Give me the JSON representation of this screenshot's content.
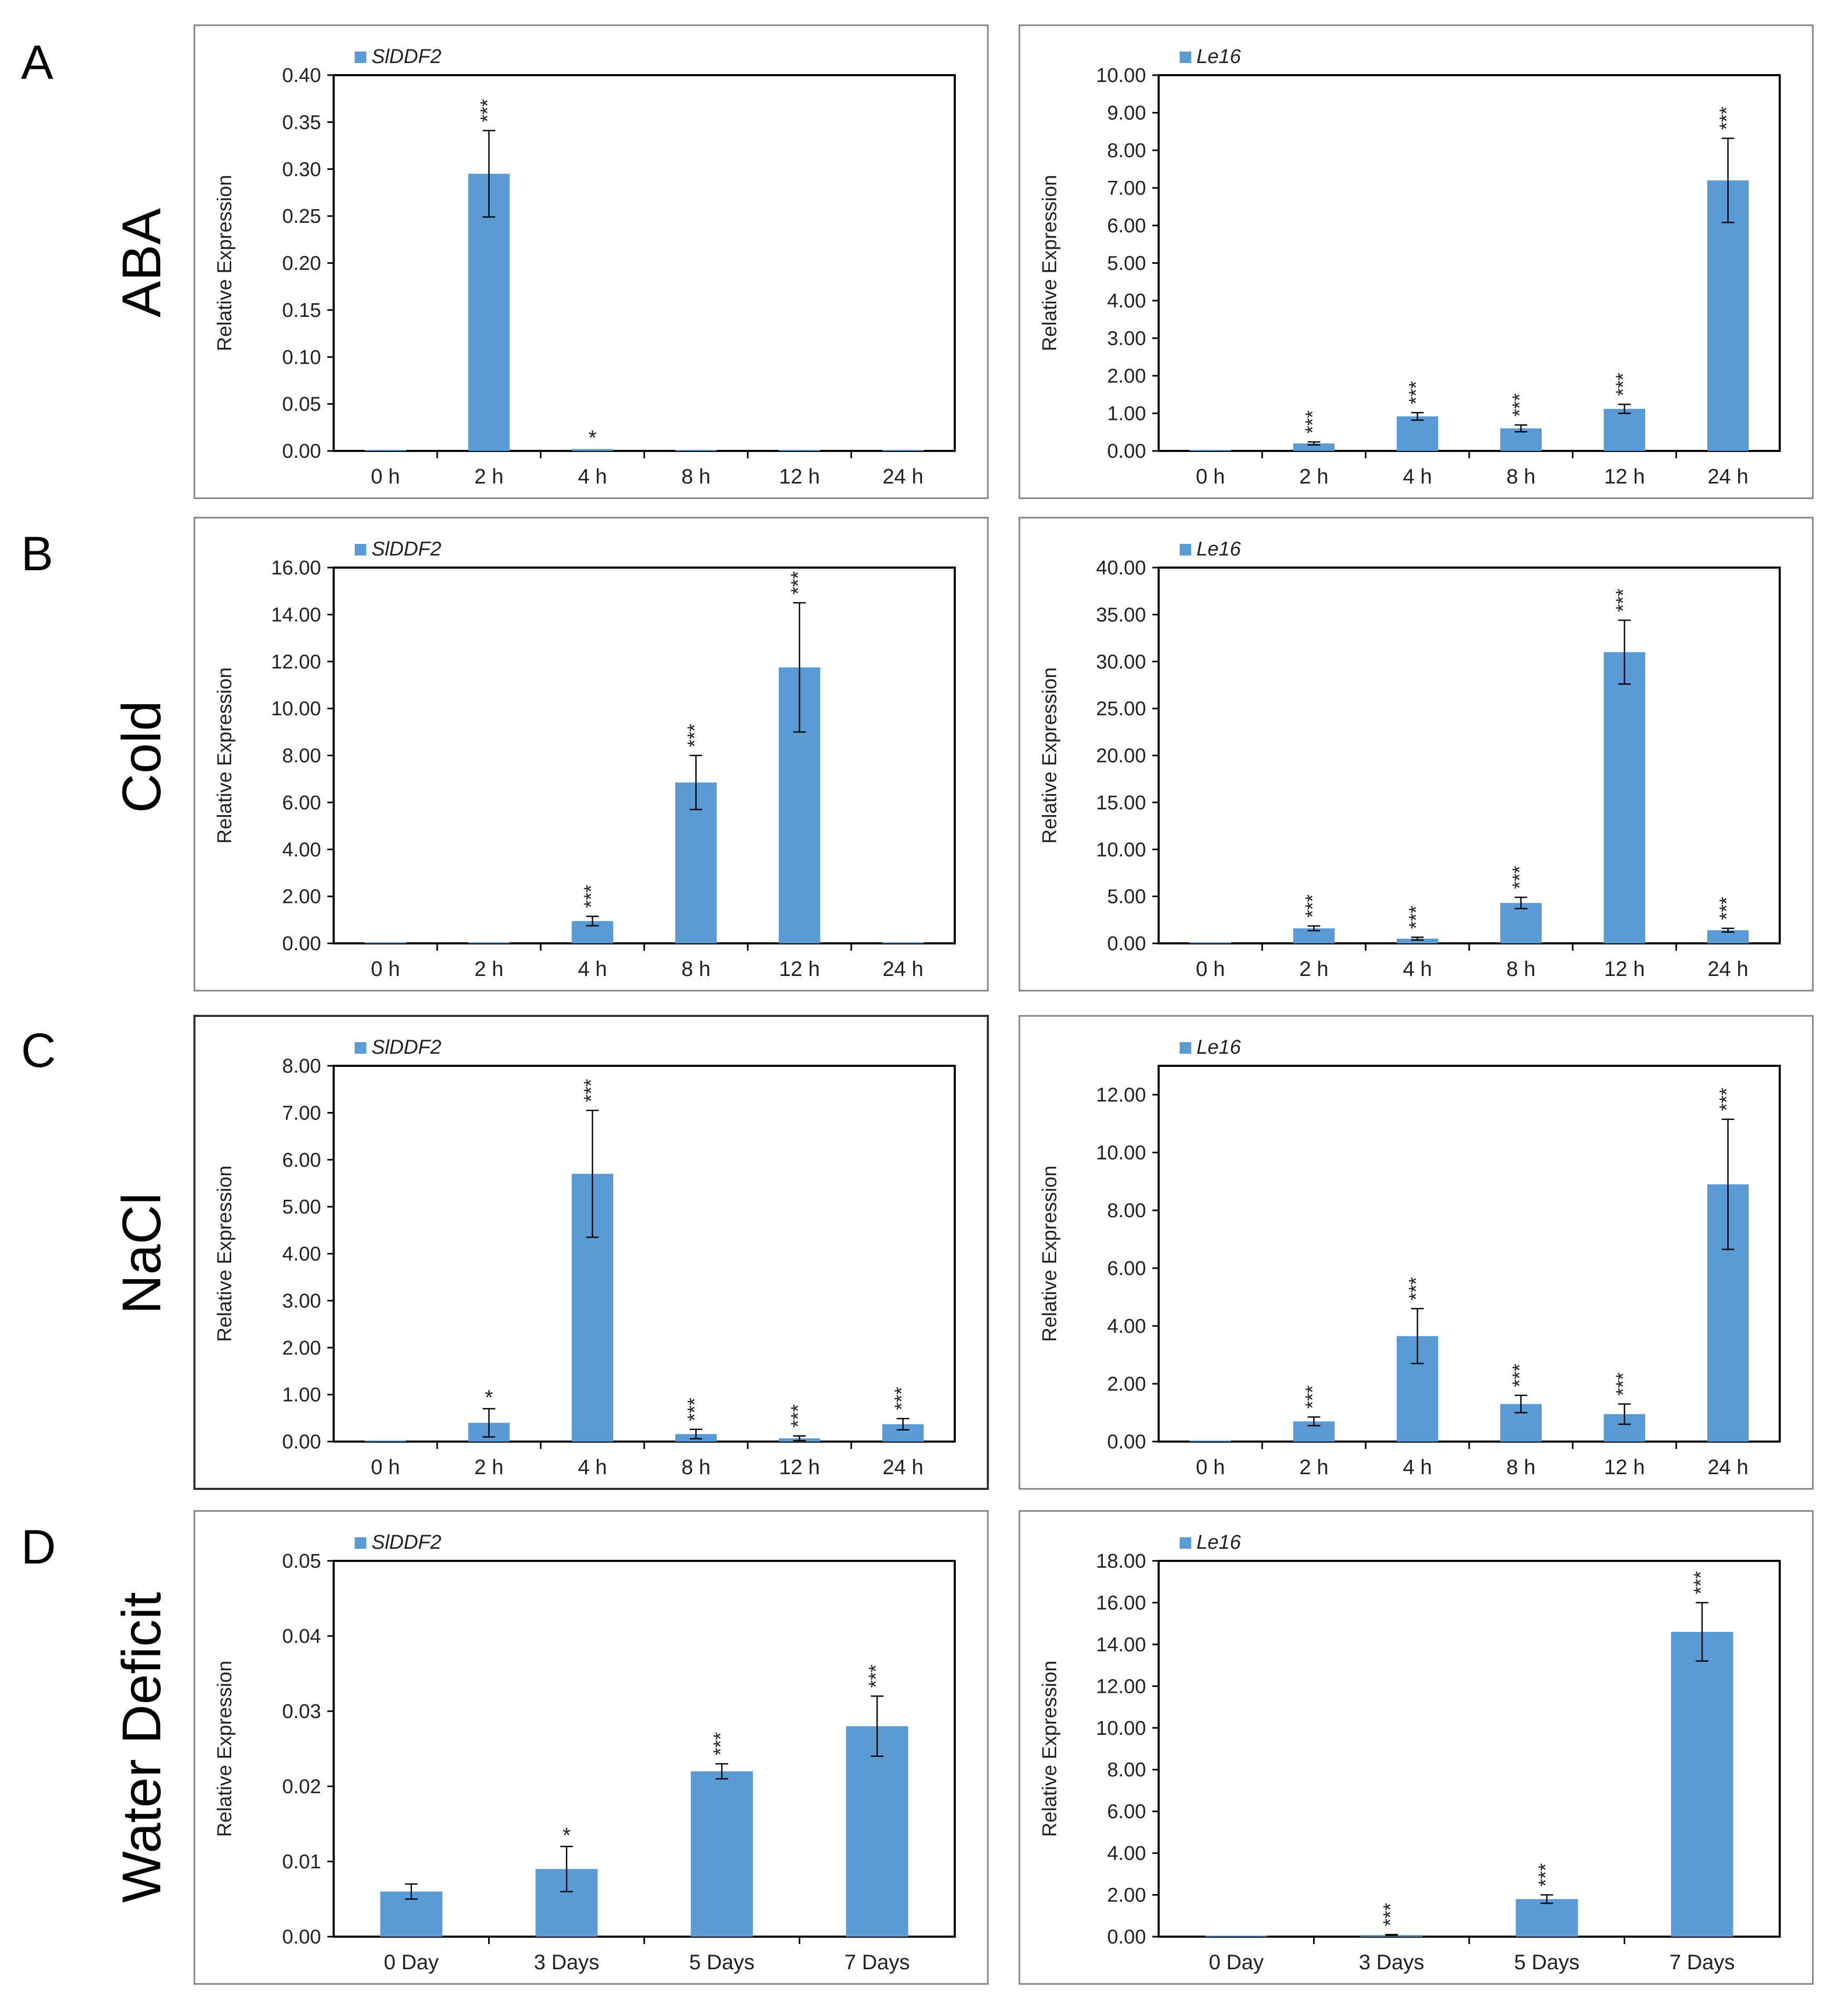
{
  "figure": {
    "panels": [
      {
        "letter": "A",
        "treatment": "ABA"
      },
      {
        "letter": "B",
        "treatment": "Cold"
      },
      {
        "letter": "C",
        "treatment": "NaCl"
      },
      {
        "letter": "D",
        "treatment": "Water Deficit"
      }
    ]
  },
  "colors": {
    "bar": "#5b9bd5",
    "frame": "#808080",
    "plot_border": "#000000"
  },
  "chart_data": [
    {
      "type": "bar",
      "row": 0,
      "col": 0,
      "legend": "SlDDF2",
      "ylabel": "Relative Expression",
      "categories": [
        "0 h",
        "2 h",
        "4 h",
        "8 h",
        "12 h",
        "24 h"
      ],
      "values": [
        0.001,
        0.295,
        0.002,
        0.001,
        0.001,
        0.001
      ],
      "errors": [
        0.0,
        0.046,
        0.0,
        0.0,
        0.0,
        0.0
      ],
      "significance": [
        "",
        "***",
        "*",
        "",
        "",
        ""
      ],
      "ylim": [
        0,
        0.4
      ],
      "yticks": [
        "0.00",
        "0.05",
        "0.10",
        "0.15",
        "0.20",
        "0.25",
        "0.30",
        "0.35",
        "0.40"
      ]
    },
    {
      "type": "bar",
      "row": 0,
      "col": 1,
      "legend": "Le16",
      "ylabel": "Relative Expression",
      "categories": [
        "0 h",
        "2 h",
        "4 h",
        "8 h",
        "12 h",
        "24 h"
      ],
      "values": [
        0.02,
        0.2,
        0.92,
        0.6,
        1.12,
        7.2
      ],
      "errors": [
        0.0,
        0.04,
        0.1,
        0.09,
        0.12,
        1.12
      ],
      "significance": [
        "",
        "***",
        "***",
        "***",
        "***",
        "***"
      ],
      "ylim": [
        0,
        10
      ],
      "yticks": [
        "0.00",
        "1.00",
        "2.00",
        "3.00",
        "4.00",
        "5.00",
        "6.00",
        "7.00",
        "8.00",
        "9.00",
        "10.00"
      ]
    },
    {
      "type": "bar",
      "row": 1,
      "col": 0,
      "legend": "SlDDF2",
      "ylabel": "Relative Expression",
      "categories": [
        "0 h",
        "2 h",
        "4 h",
        "8 h",
        "12 h",
        "24 h"
      ],
      "values": [
        0.02,
        0.02,
        0.95,
        6.85,
        11.75,
        0.02
      ],
      "errors": [
        0.0,
        0.0,
        0.2,
        1.15,
        2.75,
        0.0
      ],
      "significance": [
        "",
        "",
        "***",
        "***",
        "***",
        ""
      ],
      "ylim": [
        0,
        16
      ],
      "yticks": [
        "0.00",
        "2.00",
        "4.00",
        "6.00",
        "8.00",
        "10.00",
        "12.00",
        "14.00",
        "16.00"
      ]
    },
    {
      "type": "bar",
      "row": 1,
      "col": 1,
      "legend": "Le16",
      "ylabel": "Relative Expression",
      "categories": [
        "0 h",
        "2 h",
        "4 h",
        "8 h",
        "12 h",
        "24 h"
      ],
      "values": [
        0.05,
        1.6,
        0.5,
        4.3,
        31.0,
        1.4
      ],
      "errors": [
        0.0,
        0.25,
        0.15,
        0.6,
        3.4,
        0.2
      ],
      "significance": [
        "",
        "***",
        "***",
        "***",
        "***",
        "***"
      ],
      "ylim": [
        0,
        40
      ],
      "yticks": [
        "0.00",
        "5.00",
        "10.00",
        "15.00",
        "20.00",
        "25.00",
        "30.00",
        "35.00",
        "40.00"
      ]
    },
    {
      "type": "bar",
      "row": 2,
      "col": 0,
      "legend": "SlDDF2",
      "ylabel": "Relative Expression",
      "categories": [
        "0 h",
        "2 h",
        "4 h",
        "8 h",
        "12 h",
        "24 h"
      ],
      "values": [
        0.01,
        0.4,
        5.7,
        0.16,
        0.07,
        0.37
      ],
      "errors": [
        0.0,
        0.3,
        1.35,
        0.1,
        0.05,
        0.12
      ],
      "significance": [
        "",
        "*",
        "***",
        "***",
        "***",
        "***"
      ],
      "ylim": [
        0,
        8
      ],
      "yticks": [
        "0.00",
        "1.00",
        "2.00",
        "3.00",
        "4.00",
        "5.00",
        "6.00",
        "7.00",
        "8.00"
      ]
    },
    {
      "type": "bar",
      "row": 2,
      "col": 1,
      "legend": "Le16",
      "ylabel": "Relative Expression",
      "categories": [
        "0 h",
        "2 h",
        "4 h",
        "8 h",
        "12 h",
        "24 h"
      ],
      "values": [
        0.02,
        0.7,
        3.65,
        1.3,
        0.95,
        8.9
      ],
      "errors": [
        0.0,
        0.15,
        0.95,
        0.3,
        0.35,
        2.25
      ],
      "significance": [
        "",
        "***",
        "***",
        "***",
        "***",
        "***"
      ],
      "ylim": [
        0,
        13
      ],
      "yticks": [
        "0.00",
        "2.00",
        "4.00",
        "6.00",
        "8.00",
        "10.00",
        "12.00"
      ]
    },
    {
      "type": "bar",
      "row": 3,
      "col": 0,
      "legend": "SlDDF2",
      "ylabel": "Relative Expression",
      "categories": [
        "0 Day",
        "3 Days",
        "5 Days",
        "7 Days"
      ],
      "values": [
        0.006,
        0.009,
        0.022,
        0.028
      ],
      "errors": [
        0.001,
        0.003,
        0.001,
        0.004
      ],
      "significance": [
        "",
        "*",
        "***",
        "***"
      ],
      "ylim": [
        0,
        0.05
      ],
      "yticks": [
        "0.00",
        "0.01",
        "0.02",
        "0.03",
        "0.04",
        "0.05"
      ]
    },
    {
      "type": "bar",
      "row": 3,
      "col": 1,
      "legend": "Le16",
      "ylabel": "Relative Expression",
      "categories": [
        "0 Day",
        "3 Days",
        "5 Days",
        "7 Days"
      ],
      "values": [
        0.03,
        0.08,
        1.8,
        14.6
      ],
      "errors": [
        0.0,
        0.02,
        0.2,
        1.4
      ],
      "significance": [
        "",
        "***",
        "***",
        "***"
      ],
      "ylim": [
        0,
        18
      ],
      "yticks": [
        "0.00",
        "2.00",
        "4.00",
        "6.00",
        "8.00",
        "10.00",
        "12.00",
        "14.00",
        "16.00",
        "18.00"
      ]
    }
  ]
}
